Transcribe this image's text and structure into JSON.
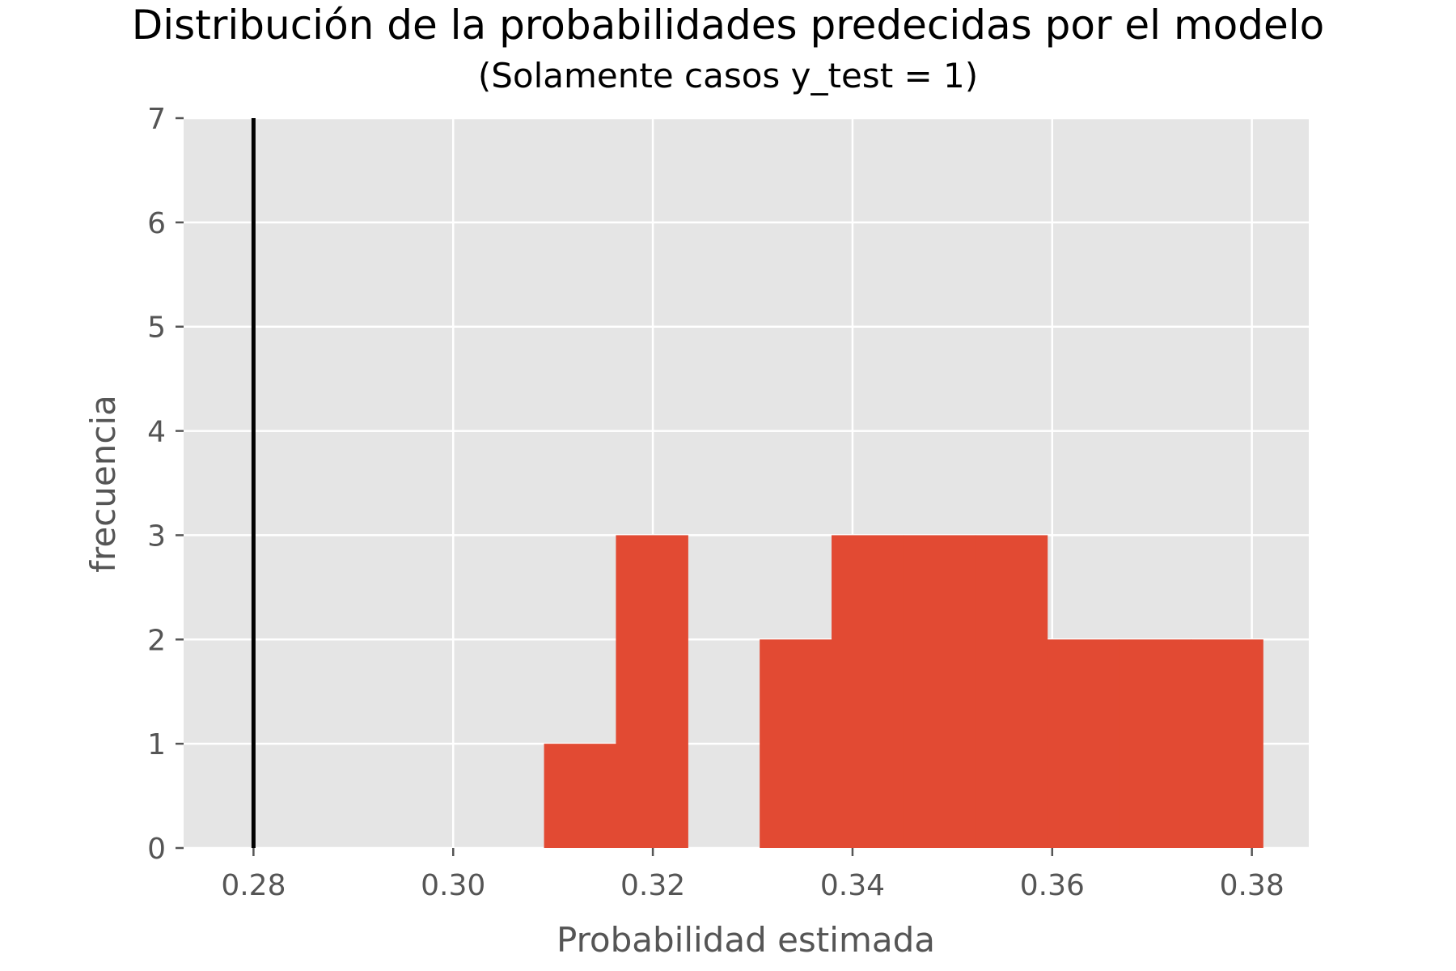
{
  "chart_data": {
    "type": "bar",
    "title": "Distribución de la probabilidades predecidas por el modelo",
    "subtitle": "(Solamente casos y_test = 1)",
    "xlabel": "Probabilidad estimada",
    "ylabel": "frecuencia",
    "xlim": [
      0.273,
      0.3857
    ],
    "ylim": [
      0,
      7
    ],
    "x_ticks": [
      "0.28",
      "0.30",
      "0.32",
      "0.34",
      "0.36",
      "0.38"
    ],
    "x_tick_values": [
      0.28,
      0.3,
      0.32,
      0.34,
      0.36,
      0.38
    ],
    "y_ticks": [
      "0",
      "1",
      "2",
      "3",
      "4",
      "5",
      "6",
      "7"
    ],
    "y_tick_values": [
      0,
      1,
      2,
      3,
      4,
      5,
      6,
      7
    ],
    "bins": [
      {
        "x0": 0.3091,
        "x1": 0.3163,
        "count": 1
      },
      {
        "x0": 0.3163,
        "x1": 0.3235,
        "count": 3
      },
      {
        "x0": 0.3235,
        "x1": 0.3307,
        "count": 0
      },
      {
        "x0": 0.3307,
        "x1": 0.3379,
        "count": 2
      },
      {
        "x0": 0.3379,
        "x1": 0.3451,
        "count": 3
      },
      {
        "x0": 0.3451,
        "x1": 0.3523,
        "count": 3
      },
      {
        "x0": 0.3523,
        "x1": 0.3595,
        "count": 3
      },
      {
        "x0": 0.3595,
        "x1": 0.3667,
        "count": 2
      },
      {
        "x0": 0.3667,
        "x1": 0.3739,
        "count": 2
      },
      {
        "x0": 0.3739,
        "x1": 0.3811,
        "count": 2
      }
    ],
    "vline_x": 0.28,
    "grid": true,
    "colors": {
      "bar": "#E24A33",
      "plot_bg": "#E5E5E5",
      "grid": "#FFFFFF",
      "vline": "#000000"
    }
  }
}
